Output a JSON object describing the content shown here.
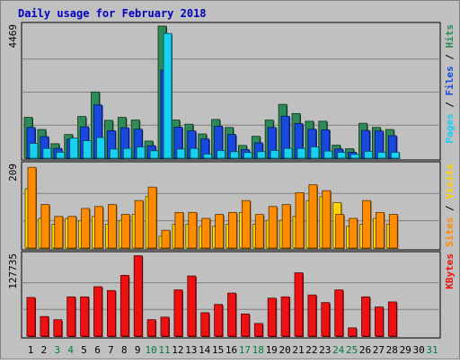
{
  "chart_data": {
    "type": "bar",
    "title": "Daily usage for February 2018",
    "colors": {
      "background": "#c0c0c0",
      "title": "#0000c0",
      "hits": "#2e8b57",
      "files": "#1848e0",
      "pages": "#18d0f0",
      "visits": "#ffd200",
      "sites": "#ff8c00",
      "kbytes": "#ee1111",
      "weekday_label": "#000000",
      "weekend_label": "#008040"
    },
    "days": [
      "1",
      "2",
      "3",
      "4",
      "5",
      "6",
      "7",
      "8",
      "9",
      "10",
      "11",
      "12",
      "13",
      "14",
      "15",
      "16",
      "17",
      "18",
      "19",
      "20",
      "21",
      "22",
      "23",
      "24",
      "25",
      "26",
      "27",
      "28",
      "29",
      "30",
      "31"
    ],
    "weekend_days": [
      "3",
      "4",
      "10",
      "11",
      "17",
      "18",
      "24",
      "25",
      "31"
    ],
    "panels": [
      {
        "id": "hits-files-pages",
        "ymax_label": "4469",
        "ymax": 4469,
        "legend": [
          {
            "text": "Pages",
            "color": "#18d0f0"
          },
          {
            "text": " / ",
            "color": "#000000"
          },
          {
            "text": "Files",
            "color": "#1848e0"
          },
          {
            "text": " / ",
            "color": "#000000"
          },
          {
            "text": "Hits",
            "color": "#2e8b57"
          }
        ],
        "series": [
          {
            "name": "Hits",
            "color": "#2e8b57",
            "values": [
              1380,
              970,
              490,
              800,
              1410,
              2240,
              1280,
              1380,
              1290,
              580,
              4469,
              1290,
              1150,
              820,
              1310,
              1040,
              430,
              740,
              1290,
              1820,
              1510,
              1250,
              1250,
              440,
              320,
              1180,
              1040,
              970,
              0,
              0,
              0
            ]
          },
          {
            "name": "Files",
            "color": "#1848e0",
            "values": [
              1040,
              730,
              330,
              640,
              1060,
              1800,
              930,
              1030,
              980,
              420,
              2980,
              1050,
              920,
              650,
              1080,
              800,
              290,
              520,
              1040,
              1420,
              1170,
              980,
              960,
              310,
              200,
              940,
              920,
              760,
              0,
              0,
              0
            ]
          },
          {
            "name": "Pages",
            "color": "#18d0f0",
            "values": [
              500,
              330,
              200,
              680,
              590,
              700,
              310,
              330,
              380,
              250,
              4220,
              310,
              330,
              140,
              260,
              220,
              190,
              220,
              260,
              330,
              330,
              380,
              240,
              200,
              130,
              230,
              200,
              200,
              0,
              0,
              0
            ]
          }
        ]
      },
      {
        "id": "visits-sites",
        "ymax_label": "209",
        "ymax": 209,
        "legend": [
          {
            "text": "Sites",
            "color": "#ff8c00"
          },
          {
            "text": " / ",
            "color": "#000000"
          },
          {
            "text": "Visits",
            "color": "#ffd200"
          }
        ],
        "series": [
          {
            "name": "Visits",
            "color": "#ffd200",
            "values": [
              150,
              75,
              60,
              75,
              70,
              80,
              60,
              70,
              85,
              130,
              30,
              60,
              60,
              55,
              55,
              60,
              90,
              60,
              70,
              70,
              80,
              120,
              130,
              115,
              55,
              60,
              75,
              60,
              0,
              0,
              0
            ]
          },
          {
            "name": "Sites",
            "color": "#ff8c00",
            "values": [
              204,
              110,
              80,
              80,
              100,
              105,
              110,
              85,
              120,
              154,
              45,
              90,
              90,
              75,
              85,
              90,
              120,
              85,
              105,
              110,
              140,
              160,
              145,
              85,
              75,
              120,
              90,
              85,
              0,
              0,
              0
            ]
          }
        ]
      },
      {
        "id": "kbytes",
        "ymax_label": "127735",
        "ymax": 127735,
        "legend": [
          {
            "text": "KBytes",
            "color": "#ee1111"
          }
        ],
        "series": [
          {
            "name": "KBytes",
            "color": "#ee1111",
            "values": [
              61000,
              31000,
              26000,
              62000,
              62000,
              78000,
              72000,
              96000,
              127000,
              26000,
              30000,
              73000,
              95000,
              37000,
              50000,
              68000,
              35000,
              20000,
              60000,
              62000,
              100000,
              65000,
              53000,
              73000,
              13000,
              62000,
              46000,
              54000,
              0,
              0,
              0
            ]
          }
        ]
      }
    ]
  }
}
